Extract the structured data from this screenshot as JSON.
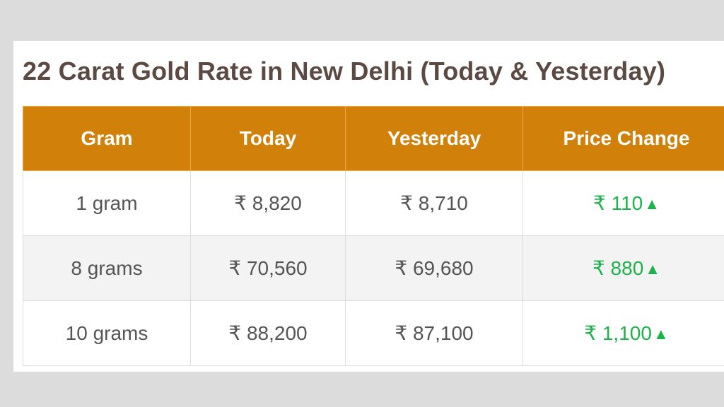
{
  "title": "22 Carat Gold Rate in New Delhi (Today & Yesterday)",
  "colors": {
    "header_bg": "#d18009",
    "header_text": "#ffffff",
    "title": "#5c4a42",
    "increase": "#1db24a"
  },
  "table": {
    "headers": [
      "Gram",
      "Today",
      "Yesterday",
      "Price Change"
    ],
    "rows": [
      {
        "gram": "1 gram",
        "today": "₹ 8,820",
        "yesterday": "₹ 8,710",
        "change": "₹ 110",
        "trend": "▲"
      },
      {
        "gram": "8 grams",
        "today": "₹ 70,560",
        "yesterday": "₹ 69,680",
        "change": "₹ 880",
        "trend": "▲"
      },
      {
        "gram": "10 grams",
        "today": "₹ 88,200",
        "yesterday": "₹ 87,100",
        "change": "₹ 1,100",
        "trend": "▲"
      }
    ]
  }
}
